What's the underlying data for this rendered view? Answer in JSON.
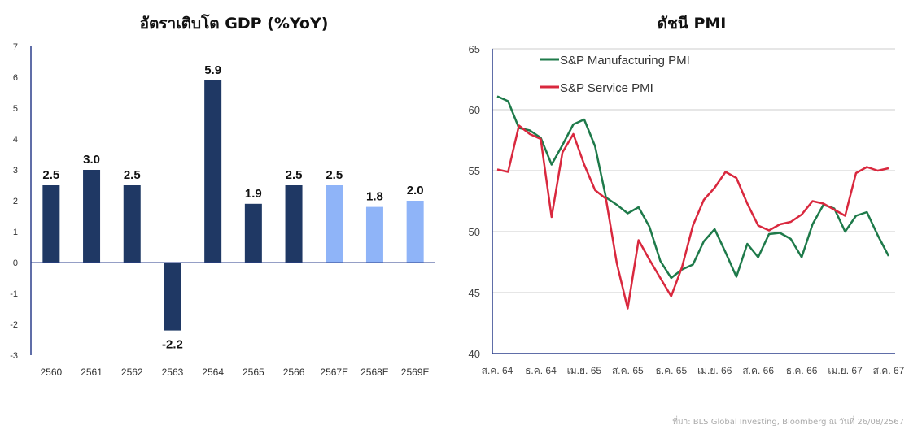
{
  "chart_data": [
    {
      "type": "bar",
      "title": "อัตราเติบโต GDP (%YoY)",
      "categories": [
        "2560",
        "2561",
        "2562",
        "2563",
        "2564",
        "2565",
        "2566",
        "2567E",
        "2568E",
        "2569E"
      ],
      "values": [
        2.5,
        3.0,
        2.5,
        -2.2,
        5.9,
        1.9,
        2.5,
        2.5,
        1.8,
        2.0
      ],
      "labels": [
        "2.5",
        "3.0",
        "2.5",
        "-2.2",
        "5.9",
        "1.9",
        "2.5",
        "2.5",
        "1.8",
        "2.0"
      ],
      "forecast": [
        false,
        false,
        false,
        false,
        false,
        false,
        false,
        true,
        true,
        true
      ],
      "ylim": [
        -3,
        7
      ],
      "yticks": [
        -3,
        -2,
        -1,
        0,
        1,
        2,
        3,
        4,
        5,
        6,
        7
      ],
      "colors": {
        "actual": "#1f3864",
        "forecast": "#8fb4f8"
      },
      "grid": false
    },
    {
      "type": "line",
      "title": "ดัชนี PMI",
      "x_ticks": [
        "ส.ค. 64",
        "ธ.ค. 64",
        "เม.ย. 65",
        "ส.ค. 65",
        "ธ.ค. 65",
        "เม.ย. 66",
        "ส.ค. 66",
        "ธ.ค. 66",
        "เม.ย. 67",
        "ส.ค. 67"
      ],
      "ylim": [
        40,
        65
      ],
      "yticks": [
        40,
        45,
        50,
        55,
        60,
        65
      ],
      "grid": true,
      "legend_placement": "top-left",
      "series": [
        {
          "name": "S&P Manufacturing PMI",
          "color": "#1e7a4a",
          "values": [
            61.1,
            60.7,
            58.5,
            58.3,
            57.7,
            55.5,
            57.1,
            58.8,
            59.2,
            57.0,
            52.8,
            52.2,
            51.5,
            52.0,
            50.4,
            47.6,
            46.2,
            46.9,
            47.3,
            49.2,
            50.2,
            48.3,
            46.3,
            49.0,
            47.9,
            49.8,
            49.9,
            49.4,
            47.9,
            50.6,
            52.2,
            51.9,
            50.0,
            51.3,
            51.6,
            49.7,
            48.0
          ]
        },
        {
          "name": "S&P Service PMI",
          "color": "#d9283e",
          "values": [
            55.1,
            54.9,
            58.7,
            58.0,
            57.6,
            51.2,
            56.5,
            58.0,
            55.5,
            53.4,
            52.7,
            47.4,
            43.7,
            49.3,
            47.7,
            46.2,
            44.7,
            47.1,
            50.5,
            52.6,
            53.6,
            54.9,
            54.4,
            52.3,
            50.5,
            50.1,
            50.6,
            50.8,
            51.4,
            52.5,
            52.3,
            51.8,
            51.3,
            54.8,
            55.3,
            55.0,
            55.2
          ]
        }
      ]
    }
  ],
  "source": "ที่มา: BLS Global Investing, Bloomberg ณ วันที่ 26/08/2567"
}
